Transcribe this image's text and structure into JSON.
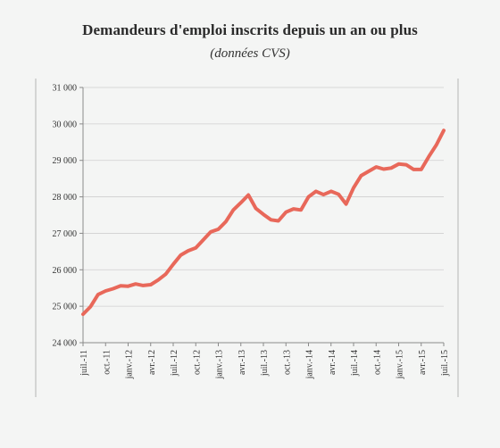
{
  "chart_data": {
    "type": "line",
    "title": "Demandeurs d'emploi inscrits depuis un an ou plus",
    "subtitle": "(données CVS)",
    "xlabel": "",
    "ylabel": "",
    "ylim": [
      24000,
      31000
    ],
    "y_ticks": [
      24000,
      25000,
      26000,
      27000,
      28000,
      29000,
      30000,
      31000
    ],
    "y_tick_labels": [
      "24 000",
      "25 000",
      "26 000",
      "27 000",
      "28 000",
      "29 000",
      "30 000",
      "31 000"
    ],
    "x_tick_labels": [
      "juil.-11",
      "oct.-11",
      "janv.-12",
      "avr.-12",
      "juil.-12",
      "oct.-12",
      "janv.-13",
      "avr.-13",
      "juil.-13",
      "oct.-13",
      "janv.-14",
      "avr.-14",
      "juil.-14",
      "oct.-14",
      "janv.-15",
      "avr.-15",
      "juil.-15"
    ],
    "grid": true,
    "legend": "none",
    "series": [
      {
        "color": "#e8685a",
        "x": [
          "2011-07",
          "2011-08",
          "2011-09",
          "2011-10",
          "2011-11",
          "2011-12",
          "2012-01",
          "2012-02",
          "2012-03",
          "2012-04",
          "2012-05",
          "2012-06",
          "2012-07",
          "2012-08",
          "2012-09",
          "2012-10",
          "2012-11",
          "2012-12",
          "2013-01",
          "2013-02",
          "2013-03",
          "2013-04",
          "2013-05",
          "2013-06",
          "2013-07",
          "2013-08",
          "2013-09",
          "2013-10",
          "2013-11",
          "2013-12",
          "2014-01",
          "2014-02",
          "2014-03",
          "2014-04",
          "2014-05",
          "2014-06",
          "2014-07",
          "2014-08",
          "2014-09",
          "2014-10",
          "2014-11",
          "2014-12",
          "2015-01",
          "2015-02",
          "2015-03",
          "2015-04",
          "2015-05",
          "2015-06",
          "2015-07"
        ],
        "values": [
          24780,
          24990,
          25320,
          25420,
          25480,
          25560,
          25550,
          25610,
          25570,
          25590,
          25720,
          25880,
          26150,
          26400,
          26520,
          26600,
          26820,
          27040,
          27110,
          27320,
          27640,
          27840,
          28050,
          27680,
          27520,
          27370,
          27340,
          27580,
          27670,
          27640,
          28000,
          28150,
          28060,
          28150,
          28070,
          27800,
          28250,
          28580,
          28700,
          28820,
          28760,
          28790,
          28900,
          28880,
          28750,
          28750,
          29100,
          29420,
          29820
        ]
      }
    ]
  }
}
